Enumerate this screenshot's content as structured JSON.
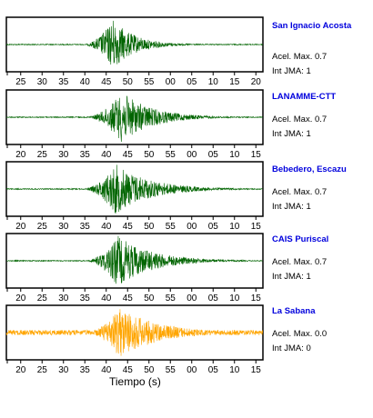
{
  "chart_data": {
    "type": "line",
    "xlabel": "Tiempo (s)",
    "grid": false,
    "panels": [
      {
        "station": "San Ignacio Acosta",
        "max_accel_label": "Acel. Max. 0.7",
        "jma_label": "Int JMA: 1",
        "color": "#006400",
        "x_ticks": [
          "25",
          "30",
          "35",
          "40",
          "45",
          "50",
          "55",
          "00",
          "05",
          "10",
          "15",
          "20"
        ],
        "signal": {
          "start_s": 17.5,
          "onset_s": 35.0,
          "peak_s": 42.5,
          "peak_amplitude": 1.0,
          "noise_amplitude": 0.02,
          "decay_s": 5.0
        }
      },
      {
        "station": "LANAMME-CTT",
        "max_accel_label": "Acel. Max. 0.7",
        "jma_label": "Int JMA: 1",
        "color": "#006400",
        "x_ticks": [
          "20",
          "25",
          "30",
          "35",
          "40",
          "45",
          "50",
          "55",
          "00",
          "05",
          "10",
          "15"
        ],
        "signal": {
          "start_s": 19.5,
          "onset_s": 37.5,
          "peak_s": 46.5,
          "peak_amplitude": 1.0,
          "noise_amplitude": 0.02,
          "decay_s": 7.0
        }
      },
      {
        "station": "Bebedero, Escazu",
        "max_accel_label": "Acel. Max. 0.7",
        "jma_label": "Int JMA: 1",
        "color": "#006400",
        "x_ticks": [
          "20",
          "25",
          "30",
          "35",
          "40",
          "45",
          "50",
          "55",
          "00",
          "05",
          "10",
          "15"
        ],
        "signal": {
          "start_s": 19.5,
          "onset_s": 37.0,
          "peak_s": 45.0,
          "peak_amplitude": 1.0,
          "noise_amplitude": 0.02,
          "decay_s": 8.0
        }
      },
      {
        "station": "CAIS Puriscal",
        "max_accel_label": "Acel. Max. 0.7",
        "jma_label": "Int JMA: 1",
        "color": "#006400",
        "x_ticks": [
          "20",
          "25",
          "30",
          "35",
          "40",
          "45",
          "50",
          "55",
          "00",
          "05",
          "10",
          "15"
        ],
        "signal": {
          "start_s": 19.5,
          "onset_s": 37.5,
          "peak_s": 45.5,
          "peak_amplitude": 1.0,
          "noise_amplitude": 0.02,
          "decay_s": 8.0
        }
      },
      {
        "station": "La Sabana",
        "max_accel_label": "Acel. Max. 0.0",
        "jma_label": "Int JMA: 0",
        "color": "#ffa500",
        "x_ticks": [
          "20",
          "25",
          "30",
          "35",
          "40",
          "45",
          "50",
          "55",
          "00",
          "05",
          "10",
          "15"
        ],
        "signal": {
          "start_s": 19.5,
          "onset_s": 37.5,
          "peak_s": 46.0,
          "peak_amplitude": 1.0,
          "noise_amplitude": 0.1,
          "decay_s": 9.0
        }
      }
    ]
  }
}
